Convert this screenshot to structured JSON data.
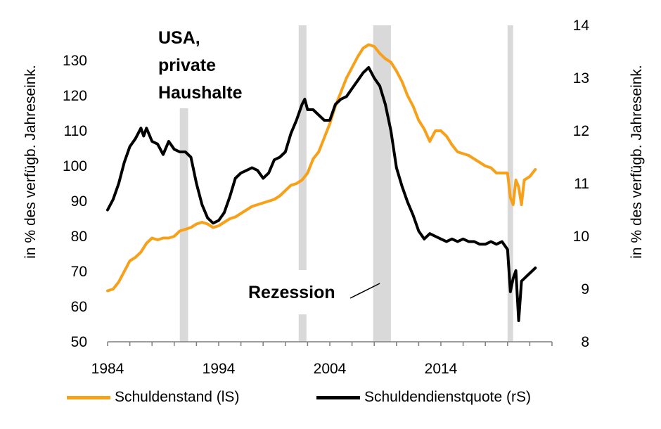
{
  "chart_data": {
    "type": "line",
    "title": "USA, private Haushalte",
    "title_lines": [
      "USA,",
      "private",
      "Haushalte"
    ],
    "left_axis": {
      "label": "in % des verfügb. Jahreseink.",
      "range": [
        50,
        140
      ],
      "ticks": [
        50,
        60,
        70,
        80,
        90,
        100,
        110,
        120,
        130
      ]
    },
    "right_axis": {
      "label": "in % des verfügb. Jahreseink.",
      "range": [
        8,
        14
      ],
      "ticks": [
        8,
        9,
        10,
        11,
        12,
        13,
        14
      ]
    },
    "x_axis": {
      "range": [
        1984,
        2024
      ],
      "ticks": [
        1984,
        1994,
        2004,
        2014
      ]
    },
    "recessions": [
      [
        1990.5,
        1991.25
      ],
      [
        2001.2,
        2001.9
      ],
      [
        2007.9,
        2009.5
      ],
      [
        2020.0,
        2020.5
      ]
    ],
    "annotation": {
      "text": "Rezession",
      "points_to": [
        2008.5,
        9.0
      ]
    },
    "series": [
      {
        "name": "Schuldenstand (lS)",
        "axis": "left",
        "color": "#F7A11A",
        "points": [
          [
            1984.0,
            64.5
          ],
          [
            1984.5,
            65
          ],
          [
            1985,
            67
          ],
          [
            1985.5,
            70
          ],
          [
            1986,
            73
          ],
          [
            1986.5,
            74
          ],
          [
            1987,
            75.5
          ],
          [
            1987.5,
            78
          ],
          [
            1988,
            79.5
          ],
          [
            1988.5,
            79
          ],
          [
            1989,
            79.5
          ],
          [
            1989.5,
            79.5
          ],
          [
            1990,
            80
          ],
          [
            1990.5,
            81.5
          ],
          [
            1991,
            82
          ],
          [
            1991.5,
            82.5
          ],
          [
            1992,
            83.5
          ],
          [
            1992.5,
            84
          ],
          [
            1993,
            83.5
          ],
          [
            1993.5,
            82.5
          ],
          [
            1994,
            83
          ],
          [
            1994.5,
            84
          ],
          [
            1995,
            85
          ],
          [
            1995.5,
            85.5
          ],
          [
            1996,
            86.5
          ],
          [
            1996.5,
            87.5
          ],
          [
            1997,
            88.5
          ],
          [
            1997.5,
            89
          ],
          [
            1998,
            89.5
          ],
          [
            1998.5,
            90
          ],
          [
            1999,
            90.5
          ],
          [
            1999.5,
            91.5
          ],
          [
            2000,
            93
          ],
          [
            2000.5,
            94.5
          ],
          [
            2001,
            95
          ],
          [
            2001.5,
            96
          ],
          [
            2002,
            98
          ],
          [
            2002.5,
            102
          ],
          [
            2003,
            104
          ],
          [
            2003.5,
            108
          ],
          [
            2004,
            112
          ],
          [
            2004.5,
            117
          ],
          [
            2005,
            121
          ],
          [
            2005.5,
            125
          ],
          [
            2006,
            128
          ],
          [
            2006.5,
            131
          ],
          [
            2007,
            133.5
          ],
          [
            2007.5,
            134.5
          ],
          [
            2008,
            134
          ],
          [
            2008.5,
            132
          ],
          [
            2009,
            130.5
          ],
          [
            2009.5,
            129.5
          ],
          [
            2010,
            127
          ],
          [
            2010.5,
            124
          ],
          [
            2011,
            120
          ],
          [
            2011.5,
            117
          ],
          [
            2012,
            113
          ],
          [
            2012.5,
            110.5
          ],
          [
            2013,
            107
          ],
          [
            2013.5,
            110
          ],
          [
            2014,
            110
          ],
          [
            2014.5,
            108.5
          ],
          [
            2015,
            106
          ],
          [
            2015.5,
            104
          ],
          [
            2016,
            103.5
          ],
          [
            2016.5,
            103
          ],
          [
            2017,
            102
          ],
          [
            2017.5,
            101
          ],
          [
            2018,
            100
          ],
          [
            2018.5,
            99.5
          ],
          [
            2019,
            98
          ],
          [
            2019.5,
            98
          ],
          [
            2020,
            98
          ],
          [
            2020.25,
            91
          ],
          [
            2020.5,
            89
          ],
          [
            2020.75,
            96
          ],
          [
            2021,
            94
          ],
          [
            2021.25,
            89
          ],
          [
            2021.5,
            96
          ],
          [
            2022,
            97
          ],
          [
            2022.5,
            99
          ]
        ]
      },
      {
        "name": "Schuldendienstquote (rS)",
        "axis": "right",
        "color": "#000000",
        "points": [
          [
            1984.0,
            10.5
          ],
          [
            1984.5,
            10.7
          ],
          [
            1985,
            11
          ],
          [
            1985.5,
            11.4
          ],
          [
            1986,
            11.7
          ],
          [
            1986.5,
            11.85
          ],
          [
            1987,
            12.05
          ],
          [
            1987.25,
            11.9
          ],
          [
            1987.5,
            12.05
          ],
          [
            1988,
            11.8
          ],
          [
            1988.5,
            11.75
          ],
          [
            1989,
            11.55
          ],
          [
            1989.5,
            11.8
          ],
          [
            1990,
            11.65
          ],
          [
            1990.5,
            11.6
          ],
          [
            1991,
            11.6
          ],
          [
            1991.5,
            11.5
          ],
          [
            1992,
            11
          ],
          [
            1992.5,
            10.6
          ],
          [
            1993,
            10.35
          ],
          [
            1993.5,
            10.25
          ],
          [
            1994,
            10.3
          ],
          [
            1994.5,
            10.45
          ],
          [
            1995,
            10.75
          ],
          [
            1995.5,
            11.1
          ],
          [
            1996,
            11.2
          ],
          [
            1996.5,
            11.25
          ],
          [
            1997,
            11.3
          ],
          [
            1997.5,
            11.25
          ],
          [
            1998,
            11.1
          ],
          [
            1998.5,
            11.2
          ],
          [
            1999,
            11.45
          ],
          [
            1999.5,
            11.5
          ],
          [
            2000,
            11.6
          ],
          [
            2000.5,
            11.95
          ],
          [
            2001,
            12.2
          ],
          [
            2001.5,
            12.5
          ],
          [
            2001.75,
            12.6
          ],
          [
            2002,
            12.4
          ],
          [
            2002.5,
            12.4
          ],
          [
            2003,
            12.3
          ],
          [
            2003.5,
            12.2
          ],
          [
            2004,
            12.2
          ],
          [
            2004.5,
            12.5
          ],
          [
            2005,
            12.6
          ],
          [
            2005.5,
            12.65
          ],
          [
            2006,
            12.8
          ],
          [
            2006.5,
            12.95
          ],
          [
            2007,
            13.1
          ],
          [
            2007.5,
            13.2
          ],
          [
            2008,
            13
          ],
          [
            2008.5,
            12.85
          ],
          [
            2009,
            12.5
          ],
          [
            2009.5,
            12
          ],
          [
            2010,
            11.3
          ],
          [
            2010.5,
            10.95
          ],
          [
            2011,
            10.65
          ],
          [
            2011.5,
            10.4
          ],
          [
            2012,
            10.1
          ],
          [
            2012.5,
            9.95
          ],
          [
            2013,
            10.05
          ],
          [
            2013.5,
            10.0
          ],
          [
            2014,
            9.95
          ],
          [
            2014.5,
            9.9
          ],
          [
            2015,
            9.95
          ],
          [
            2015.5,
            9.9
          ],
          [
            2016,
            9.95
          ],
          [
            2016.5,
            9.9
          ],
          [
            2017,
            9.9
          ],
          [
            2017.5,
            9.85
          ],
          [
            2018,
            9.85
          ],
          [
            2018.5,
            9.9
          ],
          [
            2019,
            9.85
          ],
          [
            2019.5,
            9.9
          ],
          [
            2020,
            9.75
          ],
          [
            2020.25,
            8.95
          ],
          [
            2020.5,
            9.2
          ],
          [
            2020.75,
            9.35
          ],
          [
            2021,
            8.4
          ],
          [
            2021.25,
            9.15
          ],
          [
            2021.5,
            9.2
          ],
          [
            2022,
            9.3
          ],
          [
            2022.5,
            9.4
          ]
        ]
      }
    ],
    "legend": [
      "Schuldenstand (lS)",
      "Schuldendienstquote (rS)"
    ],
    "legend_position": "bottom"
  }
}
